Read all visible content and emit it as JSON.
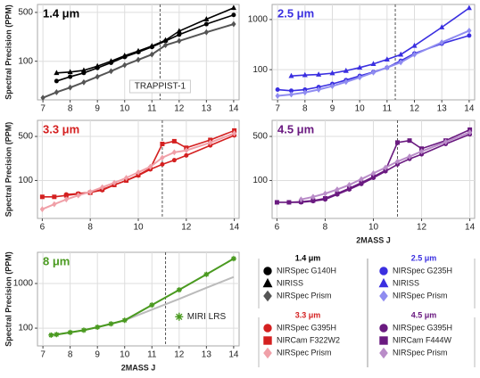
{
  "chart_data": [
    {
      "type": "line",
      "title": "1.4 μm",
      "title_color": "#000000",
      "ylabel": "Spectral Precision (PPM)",
      "yscale": "log",
      "grid": true,
      "annotation": "TRAPPIST-1",
      "vline": 11.3,
      "x": [
        7,
        7.5,
        8,
        8.5,
        9,
        9.5,
        10,
        10.5,
        11,
        11.5,
        12,
        13,
        14
      ],
      "xlim": [
        6.8,
        14.2
      ],
      "xticks": [
        7,
        8,
        9,
        10,
        11,
        12,
        13,
        14
      ],
      "ylim": [
        28,
        650
      ],
      "yticks": [
        100,
        500
      ],
      "series": [
        {
          "name": "NIRSpec G140H",
          "color": "#000000",
          "marker": "circle",
          "values": [
            null,
            52,
            60,
            68,
            80,
            95,
            115,
            135,
            160,
            195,
            240,
            340,
            460
          ]
        },
        {
          "name": "NIRISS",
          "color": "#000000",
          "marker": "triangle",
          "values": [
            null,
            68,
            70,
            74,
            85,
            100,
            120,
            140,
            165,
            200,
            270,
            400,
            580
          ]
        },
        {
          "name": "NIRSpec Prism",
          "color": "#555555",
          "marker": "diamond",
          "values": [
            30,
            36,
            42,
            50,
            60,
            72,
            88,
            105,
            125,
            170,
            195,
            260,
            340
          ]
        }
      ]
    },
    {
      "type": "line",
      "title": "2.5 μm",
      "title_color": "#3a2fe0",
      "yscale": "log",
      "grid": true,
      "vline": 11.3,
      "x": [
        7,
        7.5,
        8,
        8.5,
        9,
        9.5,
        10,
        10.5,
        11,
        11.5,
        12,
        13,
        14
      ],
      "xlim": [
        6.8,
        14.2
      ],
      "xticks": [
        7,
        8,
        9,
        10,
        11,
        12,
        13,
        14
      ],
      "ylim": [
        25,
        2000
      ],
      "yticks": [
        100,
        1000
      ],
      "series": [
        {
          "name": "NIRSpec G235H",
          "color": "#3a2fe0",
          "marker": "circle",
          "values": [
            40,
            38,
            40,
            45,
            52,
            62,
            75,
            90,
            110,
            150,
            210,
            330,
            480
          ]
        },
        {
          "name": "NIRISS",
          "color": "#3a2fe0",
          "marker": "triangle",
          "values": [
            null,
            75,
            78,
            80,
            85,
            95,
            110,
            130,
            160,
            200,
            300,
            700,
            1700
          ]
        },
        {
          "name": "NIRSpec Prism",
          "color": "#8f8cf0",
          "marker": "diamond",
          "values": [
            30,
            32,
            35,
            40,
            47,
            57,
            70,
            88,
            110,
            140,
            200,
            350,
            600
          ]
        }
      ]
    },
    {
      "type": "line",
      "title": "3.3 μm",
      "title_color": "#d42020",
      "ylabel": "Spectral Precision (PPM)",
      "yscale": "log",
      "grid": true,
      "vline": 11,
      "x": [
        6,
        6.5,
        7,
        7.5,
        8,
        8.5,
        9,
        9.5,
        10,
        10.5,
        11,
        11.5,
        12,
        13,
        14
      ],
      "xlim": [
        5.8,
        14.2
      ],
      "xticks": [
        6,
        8,
        10,
        12,
        14
      ],
      "ylim": [
        25,
        900
      ],
      "yticks": [
        100,
        500
      ],
      "series": [
        {
          "name": "NIRSpec G395H",
          "color": "#d42020",
          "marker": "circle",
          "values": [
            null,
            null,
            60,
            62,
            65,
            70,
            85,
            100,
            120,
            150,
            180,
            210,
            250,
            360,
            520
          ]
        },
        {
          "name": "NIRCam F322W2",
          "color": "#d42020",
          "marker": "square",
          "values": [
            55,
            55,
            58,
            61,
            64,
            72,
            85,
            100,
            122,
            155,
            380,
            420,
            330,
            440,
            620
          ]
        },
        {
          "name": "NIRSpec Prism",
          "color": "#f0a0a8",
          "marker": "diamond",
          "values": [
            35,
            42,
            50,
            58,
            66,
            78,
            92,
            110,
            135,
            165,
            230,
            280,
            300,
            400,
            560
          ]
        }
      ]
    },
    {
      "type": "line",
      "title": "4.5 μm",
      "title_color": "#6a1a80",
      "xlabel": "2MASS J",
      "yscale": "log",
      "grid": true,
      "vline": 11,
      "x": [
        6,
        6.5,
        7,
        7.5,
        8,
        8.5,
        9,
        9.5,
        10,
        10.5,
        11,
        11.5,
        12,
        13,
        14
      ],
      "xlim": [
        5.8,
        14.2
      ],
      "xticks": [
        6,
        8,
        10,
        12,
        14
      ],
      "ylim": [
        25,
        900
      ],
      "yticks": [
        100,
        500
      ],
      "series": [
        {
          "name": "NIRSpec G395H",
          "color": "#6a1a80",
          "marker": "circle",
          "values": [
            null,
            45,
            45,
            47,
            50,
            60,
            72,
            88,
            110,
            140,
            180,
            220,
            260,
            380,
            540
          ]
        },
        {
          "name": "NIRCam F444W",
          "color": "#6a1a80",
          "marker": "square",
          "values": [
            45,
            45,
            46,
            48,
            52,
            62,
            75,
            92,
            115,
            145,
            400,
            430,
            320,
            430,
            640
          ]
        },
        {
          "name": "NIRSpec Prism",
          "color": "#b98cc8",
          "marker": "diamond",
          "values": [
            null,
            null,
            50,
            55,
            62,
            72,
            85,
            105,
            130,
            160,
            200,
            240,
            290,
            410,
            580
          ]
        }
      ]
    },
    {
      "type": "line",
      "title": "8 μm",
      "title_color": "#4a9a20",
      "ylabel": "Spectral Precision (PPM)",
      "xlabel": "2MASS J",
      "yscale": "log",
      "grid": true,
      "vline": 11.5,
      "x": [
        7.3,
        7.5,
        8,
        8.5,
        9,
        9.5,
        10,
        11,
        12,
        13,
        14
      ],
      "xlim": [
        6.8,
        14.2
      ],
      "xticks": [
        7,
        8,
        9,
        10,
        11,
        12,
        13,
        14
      ],
      "ylim": [
        40,
        5000
      ],
      "yticks": [
        100,
        1000
      ],
      "series": [
        {
          "color": "#bbbbbb",
          "marker": "none",
          "values": [
            70,
            72,
            80,
            90,
            105,
            125,
            150,
            260,
            450,
            800,
            1400
          ]
        },
        {
          "name": "MIRI LRS",
          "color": "#4a9a20",
          "marker": "asterisk",
          "values": [
            70,
            72,
            80,
            90,
            105,
            125,
            150,
            330,
            720,
            1600,
            3600
          ]
        }
      ]
    }
  ]
}
